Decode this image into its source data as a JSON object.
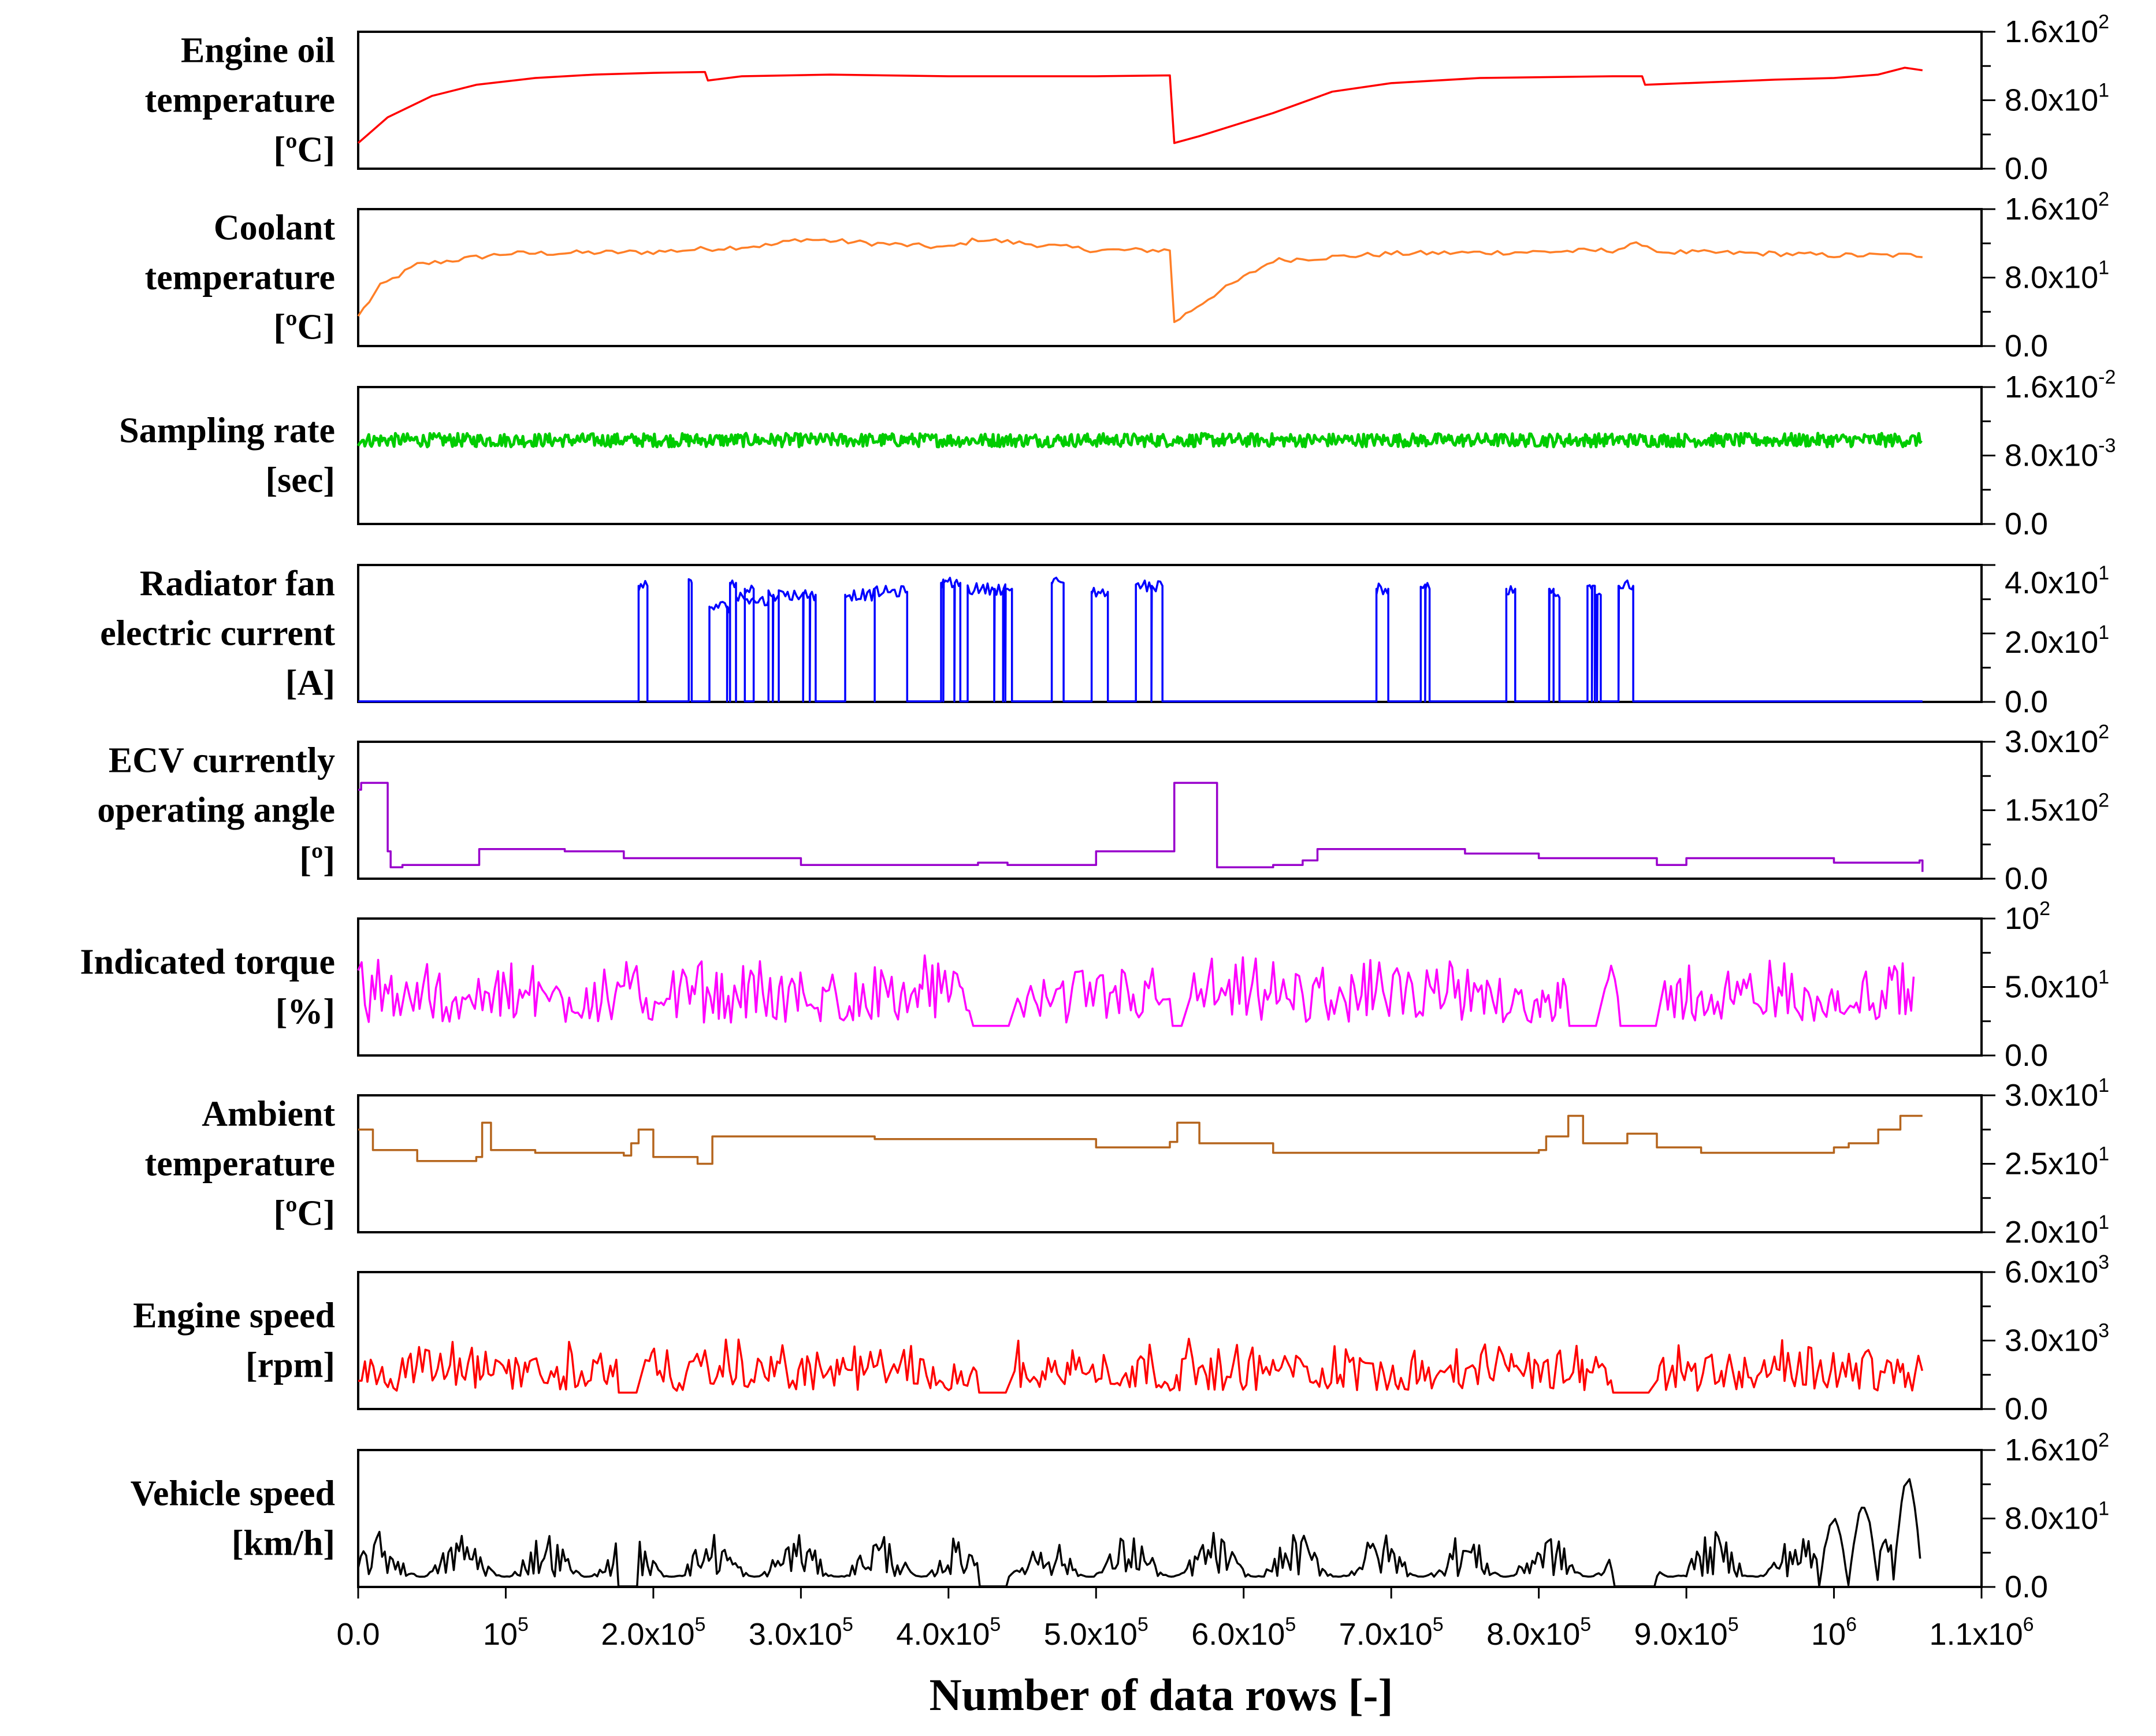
{
  "figure": {
    "xlabel": "Number of data rows [-]",
    "x_ticks": [
      {
        "value": 0,
        "label": "0.0"
      },
      {
        "value": 100000,
        "label": "10",
        "exp": "5"
      },
      {
        "value": 200000,
        "label": "2.0x10",
        "exp": "5"
      },
      {
        "value": 300000,
        "label": "3.0x10",
        "exp": "5"
      },
      {
        "value": 400000,
        "label": "4.0x10",
        "exp": "5"
      },
      {
        "value": 500000,
        "label": "5.0x10",
        "exp": "5"
      },
      {
        "value": 600000,
        "label": "6.0x10",
        "exp": "5"
      },
      {
        "value": 700000,
        "label": "7.0x10",
        "exp": "5"
      },
      {
        "value": 800000,
        "label": "8.0x10",
        "exp": "5"
      },
      {
        "value": 900000,
        "label": "9.0x10",
        "exp": "5"
      },
      {
        "value": 1000000,
        "label": "10",
        "exp": "6"
      },
      {
        "value": 1100000,
        "label": "1.1x10",
        "exp": "6"
      }
    ],
    "xlim": [
      0,
      1100000
    ]
  },
  "chart_data": [
    {
      "type": "line",
      "ylabel": [
        "Engine oil",
        "temperature",
        "[ºC]"
      ],
      "ylim": [
        0,
        160
      ],
      "y_ticks": [
        {
          "value": 0,
          "label": "0.0"
        },
        {
          "value": 80,
          "label": "8.0x10",
          "exp": "1"
        },
        {
          "value": 160,
          "label": "1.6x10",
          "exp": "2"
        }
      ],
      "color": "#ff0000",
      "style": "smooth",
      "x_end": 1060000,
      "points": [
        [
          0,
          30
        ],
        [
          20000,
          60
        ],
        [
          50000,
          85
        ],
        [
          80000,
          98
        ],
        [
          120000,
          106
        ],
        [
          160000,
          110
        ],
        [
          200000,
          112
        ],
        [
          235000,
          113
        ],
        [
          237000,
          103
        ],
        [
          260000,
          108
        ],
        [
          320000,
          110
        ],
        [
          400000,
          108
        ],
        [
          500000,
          108
        ],
        [
          550000,
          109
        ],
        [
          553000,
          30
        ],
        [
          570000,
          38
        ],
        [
          620000,
          65
        ],
        [
          660000,
          90
        ],
        [
          700000,
          100
        ],
        [
          760000,
          106
        ],
        [
          850000,
          108
        ],
        [
          870000,
          108
        ],
        [
          872000,
          98
        ],
        [
          900000,
          100
        ],
        [
          960000,
          104
        ],
        [
          1000000,
          106
        ],
        [
          1030000,
          110
        ],
        [
          1048000,
          118
        ],
        [
          1060000,
          115
        ]
      ]
    },
    {
      "type": "line",
      "ylabel": [
        "Coolant",
        "temperature",
        "[ºC]"
      ],
      "ylim": [
        0,
        160
      ],
      "y_ticks": [
        {
          "value": 0,
          "label": "0.0"
        },
        {
          "value": 80,
          "label": "8.0x10",
          "exp": "1"
        },
        {
          "value": 160,
          "label": "1.6x10",
          "exp": "2"
        }
      ],
      "color": "#ff7f27",
      "style": "wavy",
      "x_end": 1060000,
      "points": [
        [
          0,
          35
        ],
        [
          15000,
          70
        ],
        [
          40000,
          95
        ],
        [
          100000,
          108
        ],
        [
          200000,
          110
        ],
        [
          280000,
          118
        ],
        [
          300000,
          125
        ],
        [
          400000,
          115
        ],
        [
          420000,
          125
        ],
        [
          500000,
          112
        ],
        [
          550000,
          112
        ],
        [
          553000,
          28
        ],
        [
          580000,
          60
        ],
        [
          620000,
          100
        ],
        [
          700000,
          108
        ],
        [
          800000,
          110
        ],
        [
          850000,
          112
        ],
        [
          870000,
          120
        ],
        [
          880000,
          110
        ],
        [
          960000,
          108
        ],
        [
          1000000,
          106
        ],
        [
          1060000,
          106
        ]
      ]
    },
    {
      "type": "line",
      "ylabel": [
        "Sampling rate",
        "[sec]"
      ],
      "ylim": [
        0,
        0.016
      ],
      "y_ticks": [
        {
          "value": 0,
          "label": "0.0"
        },
        {
          "value": 0.008,
          "label": "8.0x10",
          "exp": "-3"
        },
        {
          "value": 0.016,
          "label": "1.6x10",
          "exp": "-2"
        }
      ],
      "color": "#00cc00",
      "style": "noise",
      "x_end": 1060000,
      "baseline": 0.0098,
      "amplitude": 0.0016
    },
    {
      "type": "line",
      "ylabel": [
        "Radiator fan",
        "electric current",
        "[A]"
      ],
      "ylim": [
        0,
        46
      ],
      "y_ticks": [
        {
          "value": 0,
          "label": "0.0"
        },
        {
          "value": 20,
          "label": "2.0x10",
          "exp": "1"
        },
        {
          "value": 40,
          "label": "4.0x10",
          "exp": "1"
        }
      ],
      "color": "#0000ff",
      "style": "pulses",
      "x_end": 1060000,
      "pulses": [
        [
          190000,
          196000,
          39
        ],
        [
          224000,
          226000,
          40
        ],
        [
          238000,
          252000,
          32
        ],
        [
          252000,
          256000,
          40
        ],
        [
          256000,
          268000,
          35
        ],
        [
          262000,
          268000,
          38
        ],
        [
          268000,
          278000,
          34
        ],
        [
          278000,
          285000,
          36
        ],
        [
          285000,
          310000,
          36
        ],
        [
          330000,
          350000,
          36
        ],
        [
          350000,
          372000,
          37
        ],
        [
          395000,
          408000,
          40
        ],
        [
          413000,
          443000,
          38
        ],
        [
          470000,
          478000,
          40
        ],
        [
          497000,
          508000,
          37
        ],
        [
          527000,
          545000,
          39
        ],
        [
          690000,
          698000,
          38
        ],
        [
          720000,
          726000,
          38
        ],
        [
          778000,
          784000,
          38
        ],
        [
          807000,
          810000,
          38
        ],
        [
          810000,
          814000,
          35
        ],
        [
          833000,
          838000,
          39
        ],
        [
          838000,
          842000,
          36
        ],
        [
          854000,
          864000,
          39
        ]
      ]
    },
    {
      "type": "line",
      "ylabel": [
        "ECV currently",
        "operating angle",
        "[º]"
      ],
      "ylim": [
        0,
        300
      ],
      "y_ticks": [
        {
          "value": 0,
          "label": "0.0"
        },
        {
          "value": 150,
          "label": "1.5x10",
          "exp": "2"
        },
        {
          "value": 300,
          "label": "3.0x10",
          "exp": "2"
        }
      ],
      "color": "#9900cc",
      "style": "step",
      "x_end": 1060000,
      "points": [
        [
          0,
          195
        ],
        [
          2000,
          210
        ],
        [
          18000,
          210
        ],
        [
          20000,
          60
        ],
        [
          22000,
          25
        ],
        [
          30000,
          30
        ],
        [
          80000,
          30
        ],
        [
          82000,
          65
        ],
        [
          140000,
          60
        ],
        [
          180000,
          45
        ],
        [
          300000,
          30
        ],
        [
          420000,
          35
        ],
        [
          440000,
          30
        ],
        [
          500000,
          60
        ],
        [
          550000,
          60
        ],
        [
          553000,
          210
        ],
        [
          578000,
          210
        ],
        [
          582000,
          25
        ],
        [
          620000,
          30
        ],
        [
          640000,
          40
        ],
        [
          650000,
          65
        ],
        [
          750000,
          55
        ],
        [
          800000,
          45
        ],
        [
          880000,
          30
        ],
        [
          900000,
          45
        ],
        [
          1000000,
          35
        ],
        [
          1058000,
          40
        ],
        [
          1060000,
          15
        ]
      ]
    },
    {
      "type": "line",
      "ylabel": [
        "Indicated torque",
        "[%]"
      ],
      "ylim": [
        0,
        100
      ],
      "y_ticks": [
        {
          "value": 0,
          "label": "0.0"
        },
        {
          "value": 50,
          "label": "5.0x10",
          "exp": "1"
        },
        {
          "value": 100,
          "label": "10",
          "exp": "2"
        }
      ],
      "color": "#ff00ff",
      "style": "spiky",
      "x_end": 1055000,
      "low": 24,
      "high": 75,
      "gaps": [
        [
          415000,
          445000
        ],
        [
          550000,
          560000
        ],
        [
          820000,
          840000
        ],
        [
          855000,
          880000
        ]
      ]
    },
    {
      "type": "line",
      "ylabel": [
        "Ambient",
        "temperature",
        "[ºC]"
      ],
      "ylim": [
        20,
        30
      ],
      "y_ticks": [
        {
          "value": 20,
          "label": "2.0x10",
          "exp": "1"
        },
        {
          "value": 25,
          "label": "2.5x10",
          "exp": "1"
        },
        {
          "value": 30,
          "label": "3.0x10",
          "exp": "1"
        }
      ],
      "color": "#b5651d",
      "style": "step",
      "x_end": 1060000,
      "points": [
        [
          0,
          27.5
        ],
        [
          10000,
          26
        ],
        [
          40000,
          25.2
        ],
        [
          80000,
          25.5
        ],
        [
          84000,
          28
        ],
        [
          90000,
          26
        ],
        [
          120000,
          25.8
        ],
        [
          180000,
          25.6
        ],
        [
          185000,
          26.5
        ],
        [
          190000,
          27.5
        ],
        [
          200000,
          25.5
        ],
        [
          230000,
          25
        ],
        [
          238000,
          25
        ],
        [
          240000,
          27
        ],
        [
          350000,
          26.8
        ],
        [
          420000,
          26.8
        ],
        [
          500000,
          26.2
        ],
        [
          550000,
          26.6
        ],
        [
          555000,
          28
        ],
        [
          570000,
          26.5
        ],
        [
          620000,
          25.8
        ],
        [
          700000,
          25.8
        ],
        [
          800000,
          26
        ],
        [
          805000,
          27
        ],
        [
          820000,
          28.5
        ],
        [
          830000,
          26.5
        ],
        [
          850000,
          26.5
        ],
        [
          860000,
          27.2
        ],
        [
          880000,
          26.2
        ],
        [
          910000,
          25.8
        ],
        [
          1000000,
          26.2
        ],
        [
          1010000,
          26.5
        ],
        [
          1030000,
          27.5
        ],
        [
          1045000,
          28.5
        ],
        [
          1060000,
          28.5
        ]
      ]
    },
    {
      "type": "line",
      "ylabel": [
        "Engine speed",
        "[rpm]"
      ],
      "ylim": [
        0,
        6000
      ],
      "y_ticks": [
        {
          "value": 0,
          "label": "0.0"
        },
        {
          "value": 3000,
          "label": "3.0x10",
          "exp": "3"
        },
        {
          "value": 6000,
          "label": "6.0x10",
          "exp": "3"
        }
      ],
      "color": "#ff0000",
      "style": "spiky",
      "x_end": 1060000,
      "low": 800,
      "high": 3200,
      "gaps": [
        [
          175000,
          192000
        ],
        [
          420000,
          440000
        ],
        [
          850000,
          880000
        ]
      ]
    },
    {
      "type": "line",
      "ylabel": [
        "Vehicle speed",
        "[km/h]"
      ],
      "ylim": [
        0,
        160
      ],
      "y_ticks": [
        {
          "value": 0,
          "label": "0.0"
        },
        {
          "value": 80,
          "label": "8.0x10",
          "exp": "1"
        },
        {
          "value": 160,
          "label": "1.6x10",
          "exp": "2"
        }
      ],
      "color": "#000000",
      "style": "hills",
      "x_end": 1060000,
      "low": 20,
      "high": 65,
      "gaps": [
        [
          175000,
          190000
        ],
        [
          420000,
          440000
        ],
        [
          850000,
          880000
        ]
      ],
      "peaks": [
        [
          990000,
          1010000,
          80
        ],
        [
          1010000,
          1030000,
          95
        ],
        [
          1040000,
          1060000,
          125
        ]
      ]
    }
  ]
}
